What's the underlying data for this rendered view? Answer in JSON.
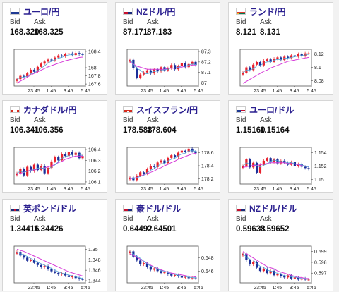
{
  "labels": {
    "bid": "Bid",
    "ask": "Ask"
  },
  "colors": {
    "up": "#e8202c",
    "down": "#1b2f99",
    "ma": "#d63ad8",
    "ma2": "#4ca3d8"
  },
  "cards": [
    {
      "pair": "ユーロ/円",
      "flag": "eu-flag",
      "bid": "168.320",
      "ask": "168.325",
      "yticks": [
        "168.4",
        "168",
        "167.8",
        "167.6"
      ],
      "ytick_values": [
        168.4,
        168.0,
        167.8,
        167.6
      ],
      "ylim": [
        167.55,
        168.45
      ],
      "xticks": [
        "23:45",
        "1:45",
        "3:45",
        "5:45"
      ],
      "closes": [
        167.72,
        167.8,
        167.78,
        167.86,
        167.95,
        167.9,
        168.02,
        168.1,
        168.15,
        168.2,
        168.18,
        168.25,
        168.3,
        168.28,
        168.33,
        168.35,
        168.31,
        168.36,
        168.33,
        168.32
      ],
      "ma": [
        167.62,
        167.67,
        167.72,
        167.77,
        167.82,
        167.86,
        167.9,
        167.94,
        167.98,
        168.02,
        168.05,
        168.08,
        168.11,
        168.14,
        168.17,
        168.19,
        168.21,
        168.23,
        168.25,
        168.26
      ]
    },
    {
      "pair": "NZドル/円",
      "flag": "nz-flag",
      "bid": "87.171",
      "ask": "87.183",
      "yticks": [
        "87.3",
        "87.2",
        "87.1",
        "87"
      ],
      "ytick_values": [
        87.3,
        87.2,
        87.1,
        87.0
      ],
      "ylim": [
        86.97,
        87.32
      ],
      "xticks": [
        "23:45",
        "1:45",
        "3:45",
        "5:45"
      ],
      "closes": [
        87.22,
        87.14,
        87.05,
        87.08,
        87.1,
        87.12,
        87.09,
        87.13,
        87.11,
        87.15,
        87.12,
        87.14,
        87.17,
        87.13,
        87.16,
        87.19,
        87.15,
        87.18,
        87.2,
        87.17
      ],
      "ma": [
        87.2,
        87.18,
        87.16,
        87.15,
        87.14,
        87.13,
        87.13,
        87.13,
        87.13,
        87.13,
        87.13,
        87.14,
        87.14,
        87.14,
        87.15,
        87.15,
        87.16,
        87.16,
        87.17,
        87.17
      ]
    },
    {
      "pair": "ランド/円",
      "flag": "za-flag",
      "bid": "8.121",
      "ask": "8.131",
      "yticks": [
        "8.12",
        "8.1",
        "8.08"
      ],
      "ytick_values": [
        8.12,
        8.1,
        8.08
      ],
      "ylim": [
        8.072,
        8.127
      ],
      "xticks": [
        "23:45",
        "1:45",
        "3:45",
        "5:45"
      ],
      "closes": [
        8.092,
        8.1,
        8.096,
        8.104,
        8.108,
        8.103,
        8.11,
        8.112,
        8.108,
        8.113,
        8.115,
        8.111,
        8.116,
        8.114,
        8.118,
        8.116,
        8.12,
        8.117,
        8.121,
        8.121
      ],
      "ma": [
        8.076,
        8.079,
        8.082,
        8.085,
        8.088,
        8.091,
        8.094,
        8.096,
        8.099,
        8.101,
        8.103,
        8.105,
        8.107,
        8.109,
        8.11,
        8.111,
        8.112,
        8.113,
        8.114,
        8.115
      ]
    },
    {
      "pair": "カナダドル/円",
      "flag": "ca-flag",
      "bid": "106.341",
      "ask": "106.356",
      "yticks": [
        "106.4",
        "106.3",
        "106.2",
        "106.1"
      ],
      "ytick_values": [
        106.4,
        106.3,
        106.2,
        106.1
      ],
      "ylim": [
        106.08,
        106.42
      ],
      "xticks": [
        "23:45",
        "1:45",
        "3:45",
        "5:45"
      ],
      "closes": [
        106.18,
        106.22,
        106.16,
        106.24,
        106.2,
        106.26,
        106.21,
        106.25,
        106.18,
        106.23,
        106.29,
        106.33,
        106.3,
        106.36,
        106.34,
        106.38,
        106.35,
        106.37,
        106.32,
        106.34
      ],
      "ma": [
        106.17,
        106.18,
        106.19,
        106.2,
        106.21,
        106.21,
        106.22,
        106.22,
        106.23,
        106.24,
        106.25,
        106.26,
        106.28,
        106.29,
        106.31,
        106.32,
        106.33,
        106.34,
        106.34,
        106.34
      ]
    },
    {
      "pair": "スイスフラン/円",
      "flag": "ch-flag",
      "bid": "178.588",
      "ask": "178.604",
      "yticks": [
        "178.6",
        "178.4",
        "178.2"
      ],
      "ytick_values": [
        178.6,
        178.4,
        178.2
      ],
      "ylim": [
        178.12,
        178.68
      ],
      "xticks": [
        "23:45",
        "1:45",
        "3:45",
        "5:45"
      ],
      "closes": [
        178.22,
        178.18,
        178.25,
        178.3,
        178.28,
        178.35,
        178.4,
        178.38,
        178.45,
        178.48,
        178.44,
        178.52,
        178.56,
        178.53,
        178.6,
        178.63,
        178.61,
        178.66,
        178.62,
        178.59
      ],
      "ma": [
        178.2,
        178.21,
        178.22,
        178.24,
        178.26,
        178.28,
        178.3,
        178.32,
        178.35,
        178.37,
        178.4,
        178.42,
        178.45,
        178.47,
        178.5,
        178.52,
        178.54,
        178.56,
        178.58,
        178.59
      ]
    },
    {
      "pair": "ユーロ/ドル",
      "flag": "eu-us-flag",
      "bid": "1.15160",
      "ask": "1.15164",
      "yticks": [
        "1.154",
        "1.152",
        "1.15"
      ],
      "ytick_values": [
        1.154,
        1.152,
        1.15
      ],
      "ylim": [
        1.1493,
        1.1548
      ],
      "xticks": [
        "23:45",
        "1:45",
        "3:45",
        "5:45"
      ],
      "closes": [
        1.152,
        1.153,
        1.1518,
        1.1525,
        1.151,
        1.1522,
        1.1528,
        1.1532,
        1.1526,
        1.153,
        1.1524,
        1.1528,
        1.1525,
        1.1522,
        1.1526,
        1.152,
        1.1523,
        1.1519,
        1.1517,
        1.1516
      ],
      "ma": [
        1.1518,
        1.1519,
        1.152,
        1.1521,
        1.1521,
        1.1522,
        1.1523,
        1.1524,
        1.1525,
        1.1525,
        1.1525,
        1.1525,
        1.1525,
        1.1524,
        1.1524,
        1.1523,
        1.1522,
        1.1521,
        1.152,
        1.1519
      ]
    },
    {
      "pair": "英ポンド/ドル",
      "flag": "gb-us-flag",
      "bid": "1.34416",
      "ask": "1.34426",
      "yticks": [
        "1.35",
        "1.348",
        "1.346",
        "1.344"
      ],
      "ytick_values": [
        1.35,
        1.348,
        1.346,
        1.344
      ],
      "ylim": [
        1.3436,
        1.3506
      ],
      "xticks": [
        "23:45",
        "1:45",
        "3:45",
        "5:45"
      ],
      "closes": [
        1.3495,
        1.3488,
        1.3484,
        1.3478,
        1.348,
        1.3474,
        1.347,
        1.3466,
        1.3468,
        1.3462,
        1.3458,
        1.3455,
        1.3452,
        1.3454,
        1.345,
        1.3447,
        1.3448,
        1.3445,
        1.3443,
        1.3442
      ],
      "ma": [
        1.35,
        1.3498,
        1.3496,
        1.3493,
        1.349,
        1.3487,
        1.3484,
        1.3481,
        1.3478,
        1.3475,
        1.3472,
        1.3469,
        1.3466,
        1.3463,
        1.346,
        1.3457,
        1.3455,
        1.3453,
        1.3451,
        1.3449
      ]
    },
    {
      "pair": "豪ドル/ドル",
      "flag": "au-us-flag",
      "bid": "0.64492",
      "ask": "0.64501",
      "yticks": [
        "0.648",
        "0.646"
      ],
      "ytick_values": [
        0.648,
        0.646
      ],
      "ylim": [
        0.6442,
        0.6498
      ],
      "xticks": [
        "23:45",
        "1:45",
        "3:45",
        "5:45"
      ],
      "closes": [
        0.649,
        0.6482,
        0.6476,
        0.647,
        0.6472,
        0.6466,
        0.6462,
        0.6464,
        0.646,
        0.6457,
        0.6458,
        0.6455,
        0.6453,
        0.6454,
        0.6452,
        0.645,
        0.6451,
        0.6449,
        0.645,
        0.6449
      ],
      "ma": [
        0.6486,
        0.6484,
        0.6481,
        0.6478,
        0.6475,
        0.6472,
        0.6469,
        0.6466,
        0.6464,
        0.6462,
        0.646,
        0.6458,
        0.6457,
        0.6456,
        0.6455,
        0.6454,
        0.6453,
        0.6452,
        0.6452,
        0.6451
      ]
    },
    {
      "pair": "NZドル/ドル",
      "flag": "nz-us-flag",
      "bid": "0.59638",
      "ask": "0.59652",
      "yticks": [
        "0.599",
        "0.598",
        "0.597"
      ],
      "ytick_values": [
        0.599,
        0.598,
        0.597
      ],
      "ylim": [
        0.5961,
        0.5995
      ],
      "xticks": [
        "23:45",
        "1:45",
        "3:45",
        "5:45"
      ],
      "closes": [
        0.5988,
        0.5982,
        0.5978,
        0.598,
        0.5975,
        0.5972,
        0.5974,
        0.597,
        0.5972,
        0.5968,
        0.5969,
        0.5967,
        0.5966,
        0.5968,
        0.5965,
        0.5966,
        0.5964,
        0.5965,
        0.5964,
        0.5964
      ],
      "ma": [
        0.599,
        0.5988,
        0.5986,
        0.5984,
        0.5982,
        0.598,
        0.5978,
        0.5976,
        0.5975,
        0.5974,
        0.5972,
        0.5971,
        0.597,
        0.5969,
        0.5968,
        0.5967,
        0.5966,
        0.5966,
        0.5965,
        0.5965
      ]
    }
  ]
}
